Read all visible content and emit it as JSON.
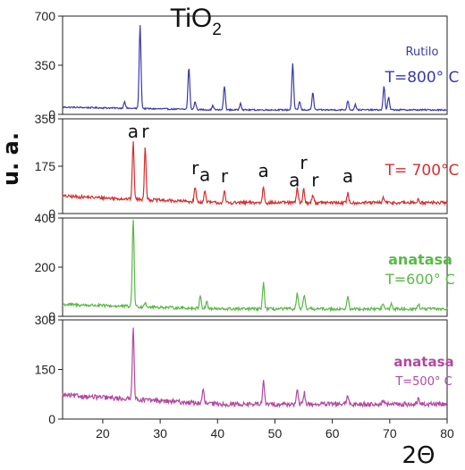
{
  "chart_data": {
    "type": "line",
    "title": "TiO",
    "title_subscript": "2",
    "xlabel": "2Θ",
    "ylabel": "u. a.",
    "xlim": [
      13,
      80
    ],
    "x_ticks": [
      "20",
      "30",
      "40",
      "50",
      "60",
      "70",
      "80"
    ],
    "grid": false,
    "annotation_color": "#111111",
    "panels": [
      {
        "label_line1": "Rutilo",
        "label_line2": "T=800° C",
        "color": "#3a3aa8",
        "ylim": [
          0,
          700
        ],
        "y_ticks": [
          "0",
          "350",
          "700"
        ],
        "baseline": 32,
        "noise": 5,
        "peaks": [
          {
            "x": 23.8,
            "h": 50
          },
          {
            "x": 26.5,
            "h": 590
          },
          {
            "x": 35.0,
            "h": 300
          },
          {
            "x": 36.1,
            "h": 55
          },
          {
            "x": 39.2,
            "h": 30
          },
          {
            "x": 41.2,
            "h": 170
          },
          {
            "x": 44.0,
            "h": 50
          },
          {
            "x": 53.1,
            "h": 330
          },
          {
            "x": 54.3,
            "h": 60
          },
          {
            "x": 56.6,
            "h": 120
          },
          {
            "x": 62.7,
            "h": 65
          },
          {
            "x": 64.0,
            "h": 40
          },
          {
            "x": 69.0,
            "h": 170
          },
          {
            "x": 69.8,
            "h": 90
          }
        ],
        "annotations": []
      },
      {
        "label_line1": "",
        "label_line2": "T= 700°C",
        "color": "#d43030",
        "ylim": [
          0,
          350
        ],
        "y_ticks": [
          "0",
          "175",
          "350"
        ],
        "baseline": 40,
        "noise": 6,
        "peaks": [
          {
            "x": 25.3,
            "h": 210
          },
          {
            "x": 27.4,
            "h": 195
          },
          {
            "x": 36.1,
            "h": 55
          },
          {
            "x": 37.8,
            "h": 40
          },
          {
            "x": 41.2,
            "h": 40
          },
          {
            "x": 48.0,
            "h": 60
          },
          {
            "x": 53.9,
            "h": 55
          },
          {
            "x": 55.0,
            "h": 50
          },
          {
            "x": 56.6,
            "h": 30
          },
          {
            "x": 62.7,
            "h": 35
          },
          {
            "x": 68.9,
            "h": 20
          },
          {
            "x": 75.0,
            "h": 15
          }
        ],
        "annotations": [
          {
            "text": "a",
            "x": 25.3,
            "y": 280
          },
          {
            "text": "r",
            "x": 27.4,
            "y": 280
          },
          {
            "text": "r",
            "x": 36.1,
            "y": 145
          },
          {
            "text": "a",
            "x": 37.8,
            "y": 120
          },
          {
            "text": "r",
            "x": 41.2,
            "y": 115
          },
          {
            "text": "a",
            "x": 48.0,
            "y": 135
          },
          {
            "text": "a",
            "x": 53.4,
            "y": 100
          },
          {
            "text": "r",
            "x": 55.0,
            "y": 165
          },
          {
            "text": "r",
            "x": 57.0,
            "y": 100
          },
          {
            "text": "a",
            "x": 62.7,
            "y": 115
          }
        ]
      },
      {
        "label_line1": "anatasa",
        "label_line2": "T=600° C",
        "color": "#5ab848",
        "ylim": [
          0,
          400
        ],
        "y_ticks": [
          "0",
          "200",
          "400"
        ],
        "baseline": 30,
        "noise": 6,
        "peaks": [
          {
            "x": 25.3,
            "h": 360
          },
          {
            "x": 27.4,
            "h": 20
          },
          {
            "x": 37.0,
            "h": 55
          },
          {
            "x": 38.1,
            "h": 30
          },
          {
            "x": 48.0,
            "h": 110
          },
          {
            "x": 53.9,
            "h": 65
          },
          {
            "x": 55.1,
            "h": 55
          },
          {
            "x": 62.7,
            "h": 50
          },
          {
            "x": 68.8,
            "h": 20
          },
          {
            "x": 70.3,
            "h": 20
          },
          {
            "x": 75.0,
            "h": 20
          }
        ],
        "annotations": []
      },
      {
        "label_line1": "anatasa",
        "label_line2": "T=500° C",
        "color": "#b04aa0",
        "ylim": [
          0,
          300
        ],
        "y_ticks": [
          "0",
          "150",
          "300"
        ],
        "baseline": 45,
        "noise": 7,
        "peaks": [
          {
            "x": 25.3,
            "h": 220
          },
          {
            "x": 37.5,
            "h": 40
          },
          {
            "x": 48.0,
            "h": 70
          },
          {
            "x": 53.9,
            "h": 40
          },
          {
            "x": 55.1,
            "h": 35
          },
          {
            "x": 62.7,
            "h": 25
          },
          {
            "x": 68.8,
            "h": 12
          },
          {
            "x": 75.0,
            "h": 15
          }
        ],
        "annotations": []
      }
    ]
  }
}
